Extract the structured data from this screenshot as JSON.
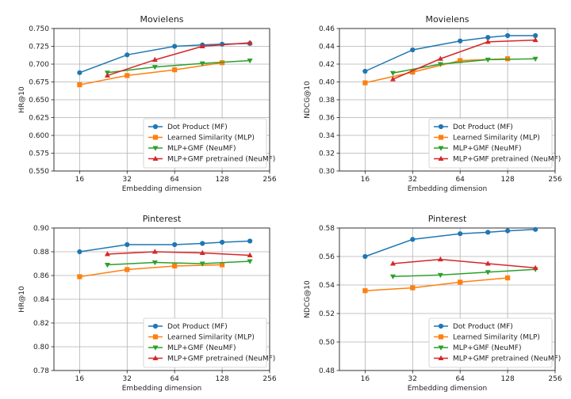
{
  "figure": {
    "series_colors": {
      "Dot Product (MF)": "#1f77b4",
      "Learned Similarity (MLP)": "#ff7f0e",
      "MLP+GMF (NeuMF)": "#2ca02c",
      "MLP+GMF pretrained (NeuMF)": "#d62728"
    },
    "series_markers": {
      "Dot Product (MF)": "circle",
      "Learned Similarity (MLP)": "square",
      "MLP+GMF (NeuMF)": "triangle-down",
      "MLP+GMF pretrained (NeuMF)": "triangle-up"
    }
  },
  "chart_data": [
    {
      "type": "line",
      "title": "Movielens",
      "xlabel": "Embedding dimension",
      "ylabel": "HR@10",
      "xscale": "log2",
      "xlim": [
        11,
        256
      ],
      "xticks": [
        16,
        32,
        64,
        128,
        256
      ],
      "ylim": [
        0.55,
        0.75
      ],
      "yticks": [
        "0.550",
        "0.575",
        "0.600",
        "0.625",
        "0.650",
        "0.675",
        "0.700",
        "0.725",
        "0.750"
      ],
      "grid": true,
      "legend_position": "lower-right",
      "series": [
        {
          "name": "Dot Product (MF)",
          "x": [
            16,
            32,
            64,
            96,
            128,
            192
          ],
          "values": [
            0.688,
            0.713,
            0.725,
            0.727,
            0.728,
            0.729
          ]
        },
        {
          "name": "Learned Similarity (MLP)",
          "x": [
            16,
            32,
            64,
            128
          ],
          "values": [
            0.671,
            0.684,
            0.692,
            0.702
          ]
        },
        {
          "name": "MLP+GMF (NeuMF)",
          "x": [
            24,
            48,
            96,
            192
          ],
          "values": [
            0.688,
            0.696,
            0.701,
            0.705
          ]
        },
        {
          "name": "MLP+GMF pretrained (NeuMF)",
          "x": [
            24,
            48,
            96,
            192
          ],
          "values": [
            0.684,
            0.706,
            0.725,
            0.73
          ]
        }
      ]
    },
    {
      "type": "line",
      "title": "Movielens",
      "xlabel": "Embedding dimension",
      "ylabel": "NDCG@10",
      "xscale": "log2",
      "xlim": [
        11,
        256
      ],
      "xticks": [
        16,
        32,
        64,
        128,
        256
      ],
      "ylim": [
        0.3,
        0.46
      ],
      "yticks": [
        "0.30",
        "0.32",
        "0.34",
        "0.36",
        "0.38",
        "0.40",
        "0.42",
        "0.44",
        "0.46"
      ],
      "grid": true,
      "legend_position": "lower-right",
      "series": [
        {
          "name": "Dot Product (MF)",
          "x": [
            16,
            32,
            64,
            96,
            128,
            192
          ],
          "values": [
            0.412,
            0.436,
            0.446,
            0.45,
            0.452,
            0.452
          ]
        },
        {
          "name": "Learned Similarity (MLP)",
          "x": [
            16,
            32,
            64,
            128
          ],
          "values": [
            0.399,
            0.411,
            0.424,
            0.426
          ]
        },
        {
          "name": "MLP+GMF (NeuMF)",
          "x": [
            24,
            48,
            96,
            192
          ],
          "values": [
            0.41,
            0.42,
            0.425,
            0.426
          ]
        },
        {
          "name": "MLP+GMF pretrained (NeuMF)",
          "x": [
            24,
            48,
            96,
            192
          ],
          "values": [
            0.403,
            0.426,
            0.445,
            0.447
          ]
        }
      ]
    },
    {
      "type": "line",
      "title": "Pinterest",
      "xlabel": "Embedding dimension",
      "ylabel": "HR@10",
      "xscale": "log2",
      "xlim": [
        11,
        256
      ],
      "xticks": [
        16,
        32,
        64,
        128,
        256
      ],
      "ylim": [
        0.78,
        0.9
      ],
      "yticks": [
        "0.78",
        "0.80",
        "0.82",
        "0.84",
        "0.86",
        "0.88",
        "0.90"
      ],
      "grid": true,
      "legend_position": "lower-right",
      "series": [
        {
          "name": "Dot Product (MF)",
          "x": [
            16,
            32,
            64,
            96,
            128,
            192
          ],
          "values": [
            0.88,
            0.886,
            0.886,
            0.887,
            0.888,
            0.889
          ]
        },
        {
          "name": "Learned Similarity (MLP)",
          "x": [
            16,
            32,
            64,
            128
          ],
          "values": [
            0.859,
            0.865,
            0.868,
            0.869
          ]
        },
        {
          "name": "MLP+GMF (NeuMF)",
          "x": [
            24,
            48,
            96,
            192
          ],
          "values": [
            0.869,
            0.871,
            0.87,
            0.872
          ]
        },
        {
          "name": "MLP+GMF pretrained (NeuMF)",
          "x": [
            24,
            48,
            96,
            192
          ],
          "values": [
            0.878,
            0.88,
            0.879,
            0.877
          ]
        }
      ]
    },
    {
      "type": "line",
      "title": "Pinterest",
      "xlabel": "Embedding dimension",
      "ylabel": "NDCG@10",
      "xscale": "log2",
      "xlim": [
        11,
        256
      ],
      "xticks": [
        16,
        32,
        64,
        128,
        256
      ],
      "ylim": [
        0.48,
        0.58
      ],
      "yticks": [
        "0.48",
        "0.50",
        "0.52",
        "0.54",
        "0.56",
        "0.58"
      ],
      "grid": true,
      "legend_position": "lower-right",
      "series": [
        {
          "name": "Dot Product (MF)",
          "x": [
            16,
            32,
            64,
            96,
            128,
            192
          ],
          "values": [
            0.56,
            0.572,
            0.576,
            0.577,
            0.578,
            0.579
          ]
        },
        {
          "name": "Learned Similarity (MLP)",
          "x": [
            16,
            32,
            64,
            128
          ],
          "values": [
            0.536,
            0.538,
            0.542,
            0.545
          ]
        },
        {
          "name": "MLP+GMF (NeuMF)",
          "x": [
            24,
            48,
            96,
            192
          ],
          "values": [
            0.546,
            0.547,
            0.549,
            0.551
          ]
        },
        {
          "name": "MLP+GMF pretrained (NeuMF)",
          "x": [
            24,
            48,
            96,
            192
          ],
          "values": [
            0.555,
            0.558,
            0.555,
            0.552
          ]
        }
      ]
    }
  ]
}
